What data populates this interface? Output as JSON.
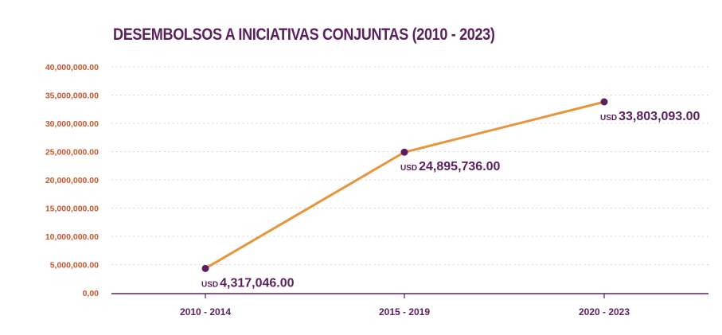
{
  "chart_data": {
    "type": "line",
    "title": "DESEMBOLSOS A INICIATIVAS CONJUNTAS (2010 - 2023)",
    "xlabel": "",
    "ylabel": "",
    "categories": [
      "2010 - 2014",
      "2015 - 2019",
      "2020 - 2023"
    ],
    "series": [
      {
        "values": [
          4317046.0,
          24895736.0,
          33803093.0
        ],
        "labels": [
          "4,317,046.00",
          "24,895,736.00",
          "33,803,093.00"
        ],
        "label_prefix": "USD",
        "color": "#e8943a",
        "marker_color": "#5b1f5e"
      }
    ],
    "ylim": [
      0,
      40000000
    ],
    "yticks": [
      0,
      5000000,
      10000000,
      15000000,
      20000000,
      25000000,
      30000000,
      35000000,
      40000000
    ],
    "ytick_labels": [
      "0,00",
      "5,000,000.00",
      "10,000,000.00",
      "15,000,000.00",
      "20,000,000.00",
      "25,000,000.00",
      "30,000,000.00",
      "35,000,000.00",
      "40,000,000.00"
    ],
    "grid": true,
    "legend": "none",
    "colors": {
      "title": "#5b1f5e",
      "ytick": "#c7562c",
      "xtick": "#5b1f5e",
      "grid": "#c8c8c8",
      "axis": "#5b1f5e"
    }
  }
}
